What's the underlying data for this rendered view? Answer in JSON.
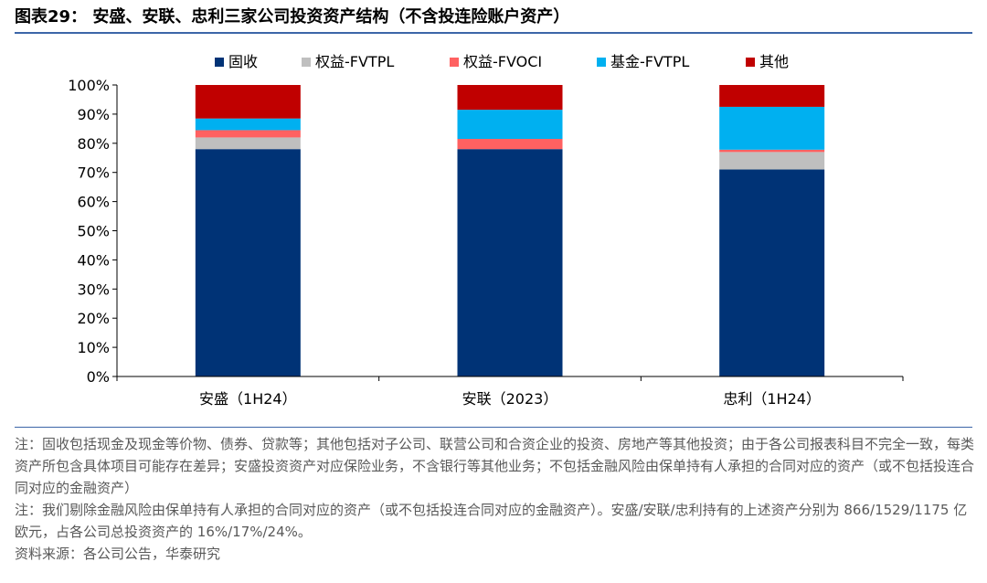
{
  "title": "图表29：  安盛、安联、忠利三家公司投资资产结构（不含投连险账户资产）",
  "chart_data": {
    "type": "bar",
    "stacked": true,
    "categories": [
      "安盛（1H24）",
      "安联（2023）",
      "忠利（1H24）"
    ],
    "series": [
      {
        "name": "固收",
        "color": "#003376",
        "values": [
          78,
          78,
          71
        ]
      },
      {
        "name": "权益-FVTPL",
        "color": "#bfbfbf",
        "values": [
          4,
          0,
          6
        ]
      },
      {
        "name": "权益-FVOCI",
        "color": "#ff6161",
        "values": [
          2.5,
          3.5,
          0.8
        ]
      },
      {
        "name": "基金-FVTPL",
        "color": "#00b0f0",
        "values": [
          4,
          10,
          14.7
        ]
      },
      {
        "name": "其他",
        "color": "#c00000",
        "values": [
          11.5,
          8.5,
          7.5
        ]
      }
    ],
    "ylim": [
      0,
      100
    ],
    "yticks": [
      "0%",
      "10%",
      "20%",
      "30%",
      "40%",
      "50%",
      "60%",
      "70%",
      "80%",
      "90%",
      "100%"
    ],
    "legend": "top",
    "grid": false
  },
  "notes": {
    "note1": "注：固收包括现金及现金等价物、债券、贷款等；其他包括对子公司、联营公司和合资企业的投资、房地产等其他投资；由于各公司报表科目不完全一致，每类资产所包含具体项目可能存在差异；安盛投资资产对应保险业务，不含银行等其他业务；不包括金融风险由保单持有人承担的合同对应的资产（或不包括投连合同对应的金融资产）",
    "note2": "注：我们剔除金融风险由保单持有人承担的合同对应的资产（或不包括投连合同对应的金融资产）。安盛/安联/忠利持有的上述资产分别为 866/1529/1175 亿欧元，占各公司总投资资产的 16%/17%/24%。",
    "source": "资料来源：各公司公告，华泰研究"
  }
}
